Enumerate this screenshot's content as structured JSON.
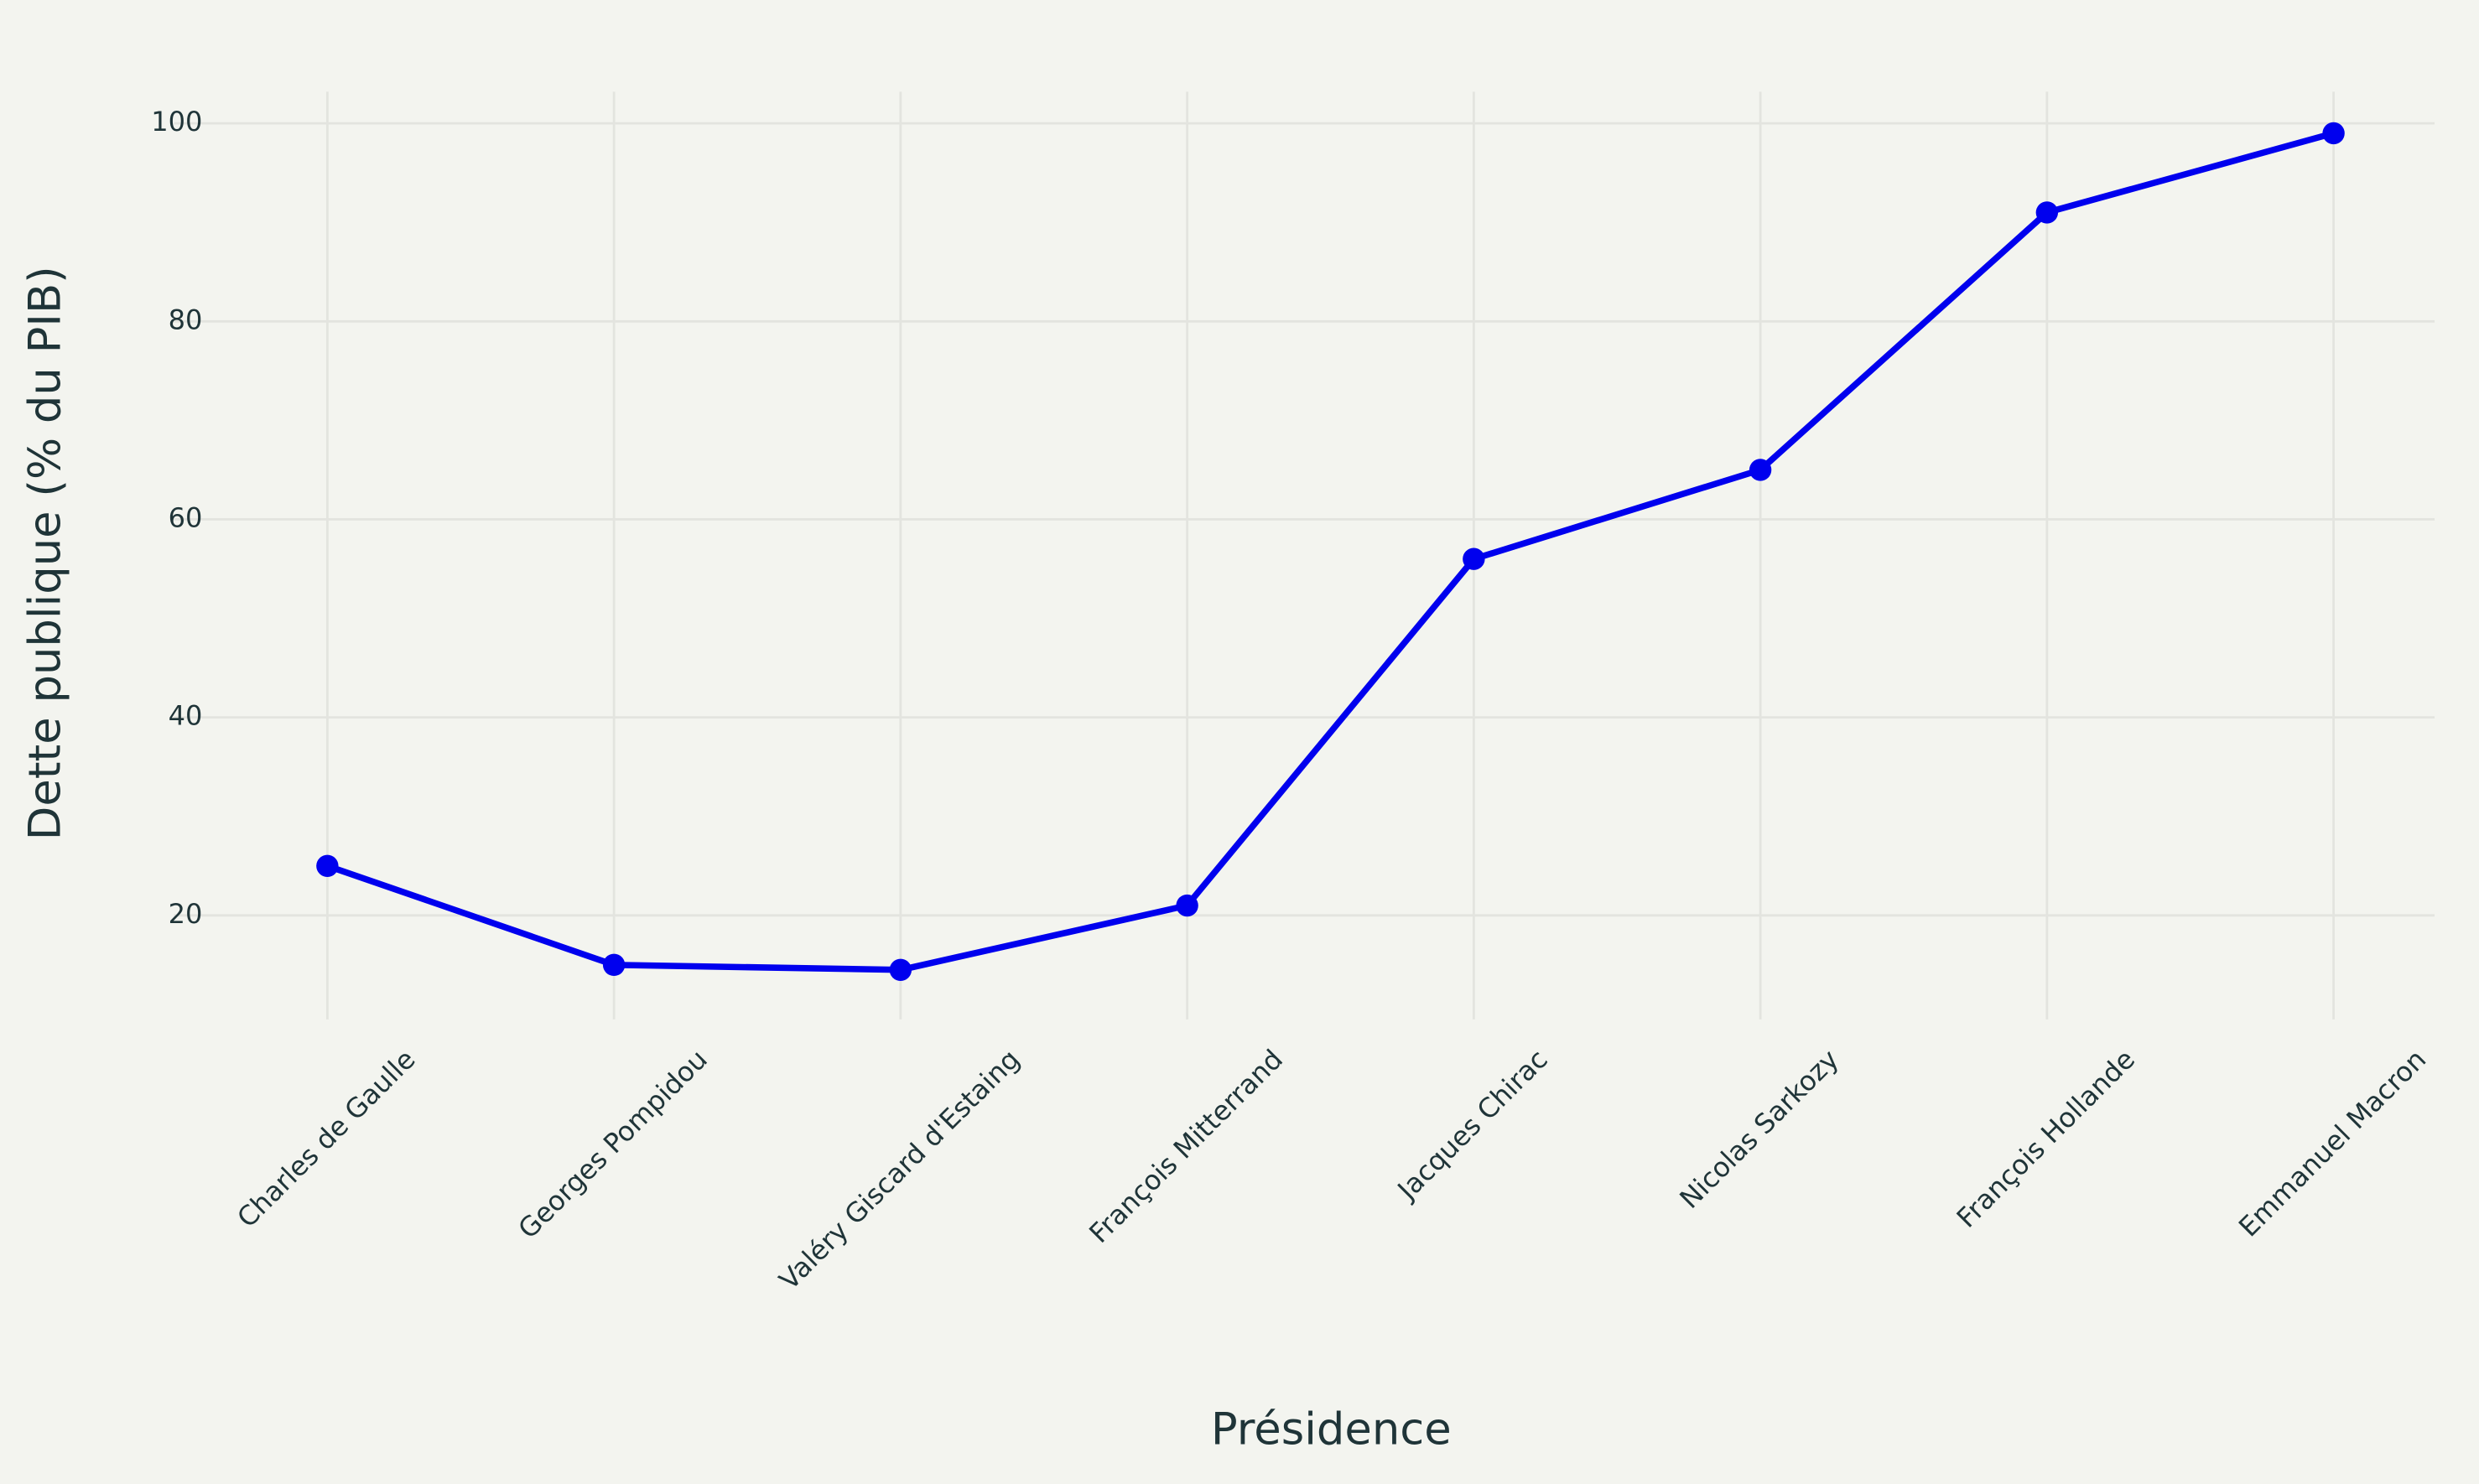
{
  "chart_data": {
    "type": "line",
    "x_label": "Présidence",
    "y_label": "Dette publique (% du PIB)",
    "categories": [
      "Charles de Gaulle",
      "Georges Pompidou",
      "Valéry Giscard d'Estaing",
      "François Mitterrand",
      "Jacques Chirac",
      "Nicolas Sarkozy",
      "François Hollande",
      "Emmanuel Macron"
    ],
    "series": [
      {
        "color": "#0000ee",
        "values": [
          25,
          15,
          14.5,
          21,
          56,
          65,
          91,
          99
        ]
      }
    ],
    "ylim": [
      9.5,
      103.2
    ],
    "yticks": [
      20,
      40,
      60,
      80,
      100
    ],
    "grid": true
  }
}
